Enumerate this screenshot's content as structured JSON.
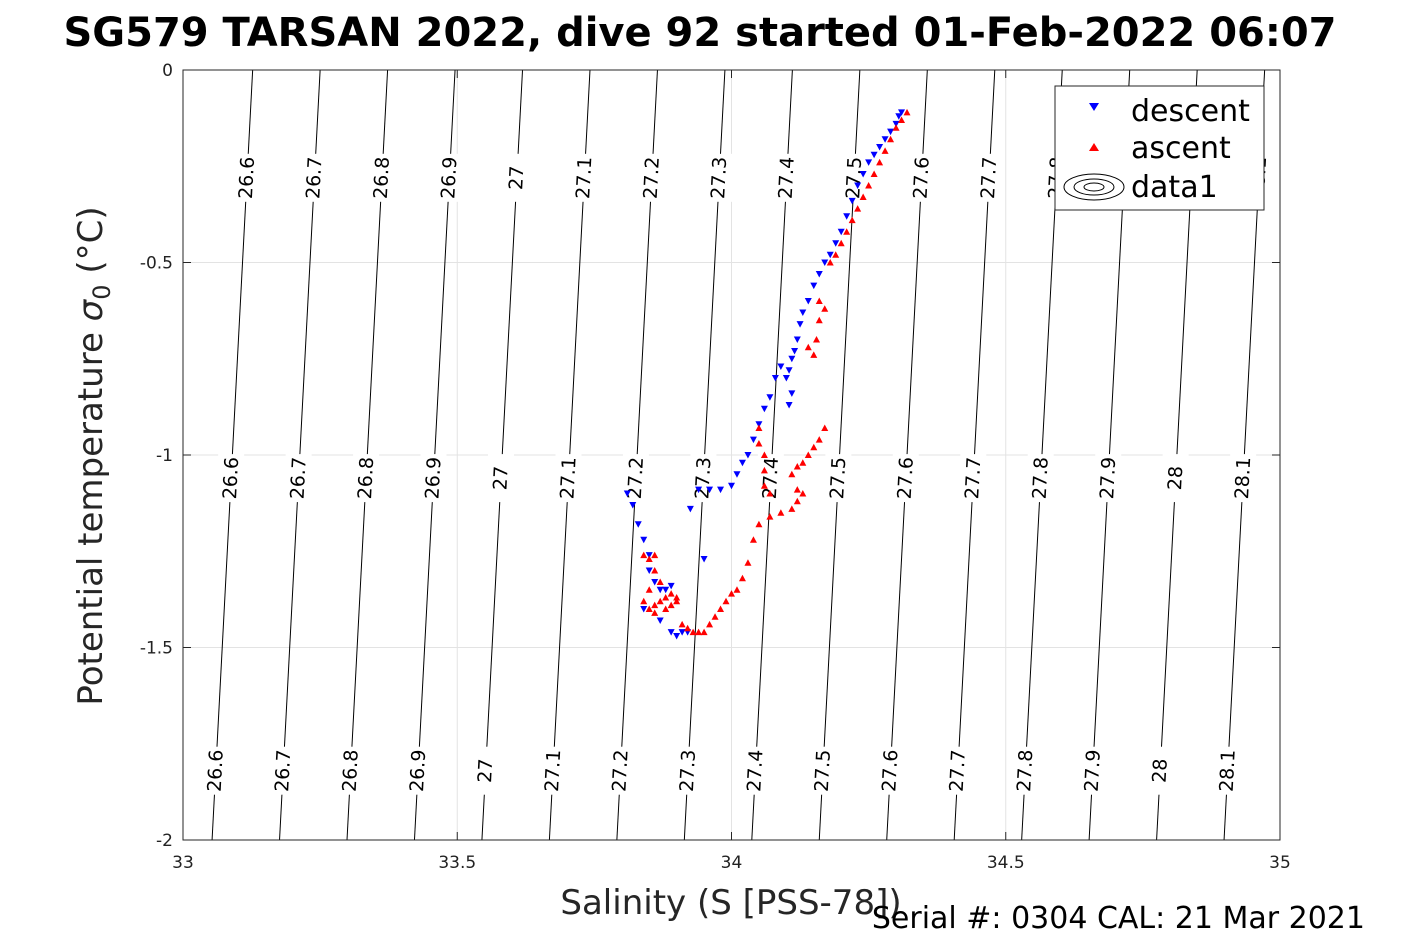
{
  "chart_data": {
    "type": "scatter",
    "title": "SG579 TARSAN 2022, dive 92 started 01-Feb-2022 06:07",
    "xlabel": "Salinity (S [PSS-78])",
    "ylabel_main": "Potential temperature ",
    "ylabel_symbol": "σ",
    "ylabel_sub": "0",
    "ylabel_unit": " (°C)",
    "xlim": [
      33,
      35
    ],
    "ylim": [
      -2,
      0
    ],
    "x_ticks": [
      33,
      33.5,
      34,
      34.5,
      35
    ],
    "x_tick_labels": [
      "33",
      "33.5",
      "34",
      "34.5",
      "35"
    ],
    "y_ticks": [
      0,
      -0.5,
      -1,
      -1.5,
      -2
    ],
    "y_tick_labels": [
      "0",
      "-0.5",
      "-1",
      "-1.5",
      "-2"
    ],
    "grid": true,
    "legend": {
      "placement": "top-right",
      "entries": [
        {
          "name": "descent",
          "color": "#0000ff",
          "marker": "triangle-down"
        },
        {
          "name": "ascent",
          "color": "#ff0000",
          "marker": "triangle-up"
        },
        {
          "name": "data1",
          "color": "#000000",
          "marker": "contour"
        }
      ]
    },
    "contours": {
      "levels": [
        26.6,
        26.7,
        26.8,
        26.9,
        27,
        27.1,
        27.2,
        27.3,
        27.4,
        27.5,
        27.6,
        27.7,
        27.8,
        27.9,
        28,
        28.1
      ],
      "labels": [
        "26.6",
        "26.7",
        "26.8",
        "26.9",
        "27",
        "27.1",
        "27.2",
        "27.3",
        "27.4",
        "27.5",
        "27.6",
        "27.7",
        "27.8",
        "27.9",
        "28",
        "28.1"
      ],
      "x_at_y_top": [
        33.127,
        33.25,
        33.373,
        33.496,
        33.619,
        33.742,
        33.865,
        33.988,
        34.111,
        34.234,
        34.357,
        34.48,
        34.603,
        34.726,
        34.849,
        34.972
      ],
      "x_at_y_bottom": [
        33.053,
        33.176,
        33.299,
        33.422,
        33.545,
        33.668,
        33.791,
        33.914,
        34.037,
        34.16,
        34.283,
        34.406,
        34.529,
        34.652,
        34.775,
        34.898
      ],
      "label_rows_y": [
        -0.28,
        -1.06,
        -1.82
      ]
    },
    "series": [
      {
        "name": "descent",
        "color": "#0000ff",
        "marker": "triangle-down",
        "points": [
          [
            34.31,
            -0.11
          ],
          [
            34.305,
            -0.12
          ],
          [
            34.3,
            -0.14
          ],
          [
            34.29,
            -0.16
          ],
          [
            34.28,
            -0.18
          ],
          [
            34.27,
            -0.2
          ],
          [
            34.26,
            -0.22
          ],
          [
            34.25,
            -0.24
          ],
          [
            34.24,
            -0.27
          ],
          [
            34.23,
            -0.3
          ],
          [
            34.22,
            -0.34
          ],
          [
            34.21,
            -0.38
          ],
          [
            34.2,
            -0.42
          ],
          [
            34.19,
            -0.45
          ],
          [
            34.18,
            -0.48
          ],
          [
            34.17,
            -0.5
          ],
          [
            34.16,
            -0.53
          ],
          [
            34.15,
            -0.56
          ],
          [
            34.14,
            -0.6
          ],
          [
            34.13,
            -0.63
          ],
          [
            34.125,
            -0.66
          ],
          [
            34.12,
            -0.7
          ],
          [
            34.115,
            -0.73
          ],
          [
            34.11,
            -0.75
          ],
          [
            34.105,
            -0.78
          ],
          [
            34.1,
            -0.8
          ],
          [
            34.11,
            -0.84
          ],
          [
            34.105,
            -0.87
          ],
          [
            34.09,
            -0.77
          ],
          [
            34.08,
            -0.8
          ],
          [
            34.07,
            -0.85
          ],
          [
            34.06,
            -0.88
          ],
          [
            34.05,
            -0.92
          ],
          [
            34.04,
            -0.96
          ],
          [
            34.03,
            -1.0
          ],
          [
            34.02,
            -1.02
          ],
          [
            34.01,
            -1.05
          ],
          [
            34.0,
            -1.08
          ],
          [
            33.98,
            -1.09
          ],
          [
            33.96,
            -1.09
          ],
          [
            33.94,
            -1.09
          ],
          [
            33.81,
            -1.1
          ],
          [
            33.82,
            -1.13
          ],
          [
            33.83,
            -1.18
          ],
          [
            33.84,
            -1.22
          ],
          [
            33.85,
            -1.26
          ],
          [
            33.85,
            -1.3
          ],
          [
            33.86,
            -1.33
          ],
          [
            33.87,
            -1.35
          ],
          [
            33.88,
            -1.35
          ],
          [
            33.89,
            -1.34
          ],
          [
            33.84,
            -1.4
          ],
          [
            33.87,
            -1.43
          ],
          [
            33.89,
            -1.46
          ],
          [
            33.9,
            -1.47
          ],
          [
            33.91,
            -1.46
          ],
          [
            33.92,
            -1.46
          ],
          [
            33.925,
            -1.14
          ],
          [
            33.95,
            -1.27
          ]
        ]
      },
      {
        "name": "ascent",
        "color": "#ff0000",
        "marker": "triangle-up",
        "points": [
          [
            34.32,
            -0.11
          ],
          [
            34.31,
            -0.13
          ],
          [
            34.3,
            -0.15
          ],
          [
            34.29,
            -0.18
          ],
          [
            34.28,
            -0.21
          ],
          [
            34.27,
            -0.24
          ],
          [
            34.26,
            -0.27
          ],
          [
            34.25,
            -0.3
          ],
          [
            34.24,
            -0.33
          ],
          [
            34.23,
            -0.36
          ],
          [
            34.22,
            -0.39
          ],
          [
            34.21,
            -0.42
          ],
          [
            34.2,
            -0.45
          ],
          [
            34.19,
            -0.48
          ],
          [
            34.18,
            -0.5
          ],
          [
            34.17,
            -0.62
          ],
          [
            34.16,
            -0.65
          ],
          [
            34.155,
            -0.7
          ],
          [
            34.15,
            -0.74
          ],
          [
            34.14,
            -0.72
          ],
          [
            34.16,
            -0.6
          ],
          [
            34.17,
            -0.93
          ],
          [
            34.16,
            -0.96
          ],
          [
            34.15,
            -0.98
          ],
          [
            34.14,
            -1.0
          ],
          [
            34.13,
            -1.02
          ],
          [
            34.12,
            -1.03
          ],
          [
            34.11,
            -1.05
          ],
          [
            34.12,
            -1.09
          ],
          [
            34.05,
            -0.93
          ],
          [
            34.05,
            -0.97
          ],
          [
            34.06,
            -1.0
          ],
          [
            34.06,
            -1.04
          ],
          [
            34.06,
            -1.08
          ],
          [
            34.07,
            -1.1
          ],
          [
            34.13,
            -1.1
          ],
          [
            34.12,
            -1.12
          ],
          [
            34.11,
            -1.14
          ],
          [
            34.09,
            -1.15
          ],
          [
            34.07,
            -1.16
          ],
          [
            34.05,
            -1.18
          ],
          [
            34.04,
            -1.22
          ],
          [
            34.03,
            -1.28
          ],
          [
            34.02,
            -1.32
          ],
          [
            34.01,
            -1.35
          ],
          [
            34.0,
            -1.36
          ],
          [
            33.99,
            -1.38
          ],
          [
            33.98,
            -1.4
          ],
          [
            33.97,
            -1.42
          ],
          [
            33.96,
            -1.44
          ],
          [
            33.95,
            -1.46
          ],
          [
            33.94,
            -1.46
          ],
          [
            33.93,
            -1.46
          ],
          [
            33.92,
            -1.45
          ],
          [
            33.91,
            -1.44
          ],
          [
            33.9,
            -1.38
          ],
          [
            33.89,
            -1.36
          ],
          [
            33.88,
            -1.37
          ],
          [
            33.87,
            -1.38
          ],
          [
            33.86,
            -1.39
          ],
          [
            33.85,
            -1.4
          ],
          [
            33.84,
            -1.38
          ],
          [
            33.85,
            -1.35
          ],
          [
            33.86,
            -1.3
          ],
          [
            33.85,
            -1.27
          ],
          [
            33.84,
            -1.26
          ],
          [
            33.86,
            -1.26
          ],
          [
            33.87,
            -1.33
          ],
          [
            33.88,
            -1.4
          ],
          [
            33.89,
            -1.39
          ],
          [
            33.9,
            -1.37
          ],
          [
            33.86,
            -1.41
          ]
        ]
      }
    ],
    "footer": "Serial #: 0304  CAL: 21 Mar 2021"
  }
}
